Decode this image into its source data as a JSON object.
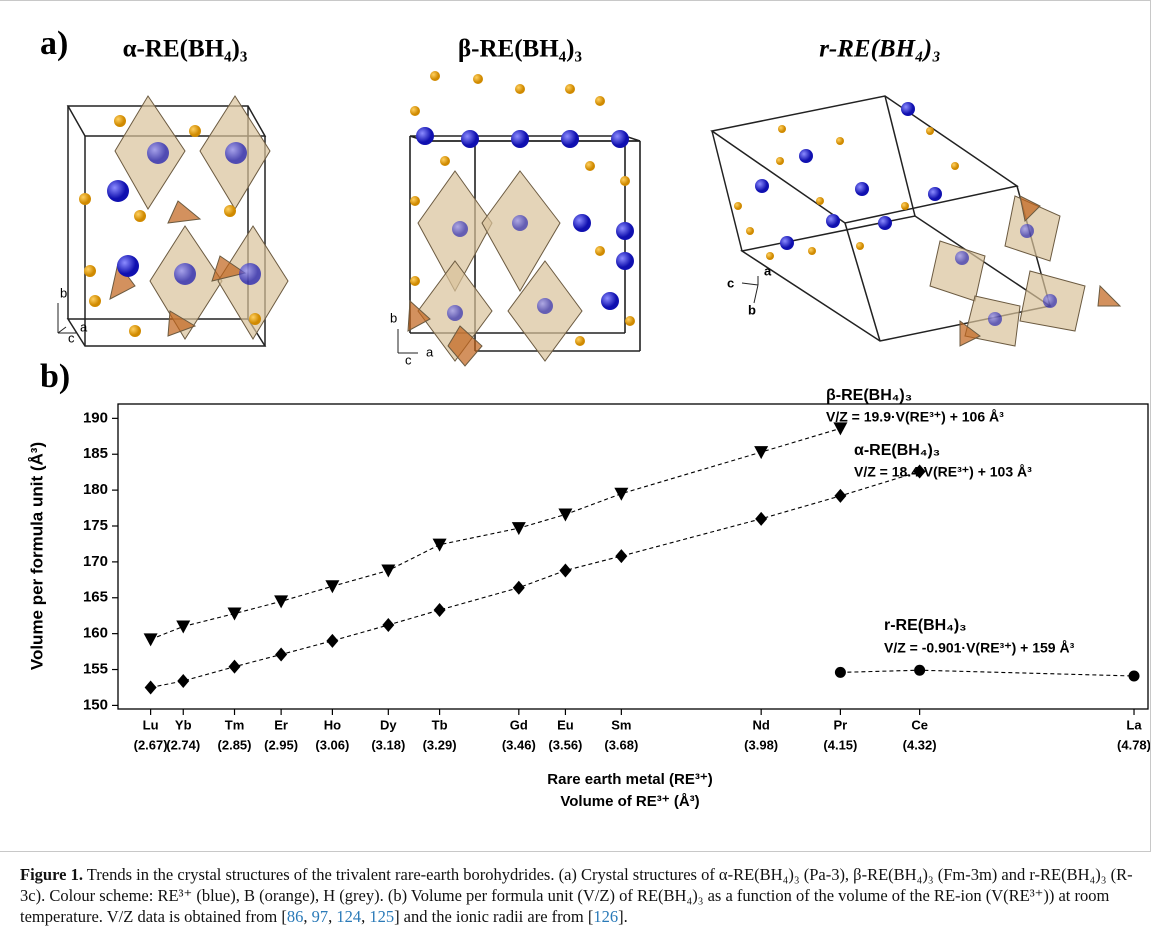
{
  "panel_a": {
    "label": "a)",
    "structures": [
      {
        "title": "α-RE(BH₄)₃",
        "axes": [
          "b",
          "a",
          "c"
        ]
      },
      {
        "title": "β-RE(BH₄)₃",
        "axes": [
          "b",
          "a",
          "c"
        ]
      },
      {
        "title": "r-RE(BH₄)₃",
        "axes": [
          "a",
          "c",
          "b"
        ]
      }
    ]
  },
  "panel_b_label": "b)",
  "chart_data": {
    "type": "scatter",
    "y_label": "Volume per formula unit (Å³)",
    "x_label": [
      "Rare earth metal (RE³⁺)",
      "Volume of RE³⁺ (Å³)"
    ],
    "xlim": [
      2.6,
      4.81
    ],
    "ylim": [
      149.5,
      192
    ],
    "yticks": [
      150,
      155,
      160,
      165,
      170,
      175,
      180,
      185,
      190
    ],
    "xticks": [
      {
        "value": 2.67,
        "label": "(2.67)"
      },
      {
        "value": 2.74,
        "label": "(2.74)"
      },
      {
        "value": 2.85,
        "label": "(2.85)"
      },
      {
        "value": 2.95,
        "label": "(2.95)"
      },
      {
        "value": 3.06,
        "label": "(3.06)"
      },
      {
        "value": 3.18,
        "label": "(3.18)"
      },
      {
        "value": 3.29,
        "label": "(3.29)"
      },
      {
        "value": 3.46,
        "label": "(3.46)"
      },
      {
        "value": 3.56,
        "label": "(3.56)"
      },
      {
        "value": 3.68,
        "label": "(3.68)"
      },
      {
        "value": 3.98,
        "label": "(3.98)"
      },
      {
        "value": 4.15,
        "label": "(4.15)"
      },
      {
        "value": 4.32,
        "label": "(4.32)"
      },
      {
        "value": 4.78,
        "label": "(4.78)"
      }
    ],
    "xtick_elements": [
      "Lu",
      "Yb",
      "Tm",
      "Er",
      "Ho",
      "Dy",
      "Tb",
      "Gd",
      "Eu",
      "Sm",
      "Nd",
      "Pr",
      "Ce",
      "La"
    ],
    "series": [
      {
        "name": "β-RE(BH₄)₃",
        "equation": "V/Z = 19.9·V(RE³⁺) + 106 Å³",
        "marker": "triangle-down",
        "color": "#000000",
        "x": [
          2.67,
          2.74,
          2.85,
          2.95,
          3.06,
          3.18,
          3.29,
          3.46,
          3.56,
          3.68,
          3.98,
          4.15
        ],
        "values": [
          159.2,
          161.0,
          162.8,
          164.5,
          166.6,
          168.8,
          172.4,
          174.7,
          176.6,
          179.5,
          185.3,
          188.6
        ]
      },
      {
        "name": "α-RE(BH₄)₃",
        "equation": "V/Z = 18.4·V(RE³⁺) + 103 Å³",
        "marker": "diamond",
        "color": "#000000",
        "x": [
          2.67,
          2.74,
          2.85,
          2.95,
          3.06,
          3.18,
          3.29,
          3.46,
          3.56,
          3.68,
          3.98,
          4.15,
          4.32
        ],
        "values": [
          152.5,
          153.4,
          155.4,
          157.1,
          159.0,
          161.2,
          163.3,
          166.4,
          168.8,
          170.8,
          176.0,
          179.2,
          182.6
        ]
      },
      {
        "name": "r-RE(BH₄)₃",
        "equation": "V/Z = -0.901·V(RE³⁺) + 159 Å³",
        "marker": "circle",
        "color": "#000000",
        "x": [
          4.15,
          4.32,
          4.78
        ],
        "values": [
          154.6,
          154.9,
          154.1
        ]
      }
    ]
  },
  "caption": {
    "label": "Figure 1.",
    "link_color": "#2a7ab8",
    "segments": [
      {
        "text": " Trends in the crystal structures of the trivalent rare-earth borohydrides. (a) Crystal structures of α-RE(BH₄)₃ (Pa-3), β-RE(BH₄)₃ (Fm-3m) and r-RE(BH₄)₃ (R-3c). Colour scheme: RE³⁺ (blue), B (orange), H (grey). (b) Volume per formula unit (V/Z) of RE(BH₄)₃ as a function of the volume of the RE-ion (V(RE³⁺)) at room temperature. V/Z data is obtained from ["
      },
      {
        "text": "86",
        "link": true
      },
      {
        "text": ", "
      },
      {
        "text": "97",
        "link": true
      },
      {
        "text": ", "
      },
      {
        "text": "124",
        "link": true
      },
      {
        "text": ", "
      },
      {
        "text": "125",
        "link": true
      },
      {
        "text": "] and the ionic radii are from ["
      },
      {
        "text": "126",
        "link": true
      },
      {
        "text": "]."
      }
    ]
  }
}
